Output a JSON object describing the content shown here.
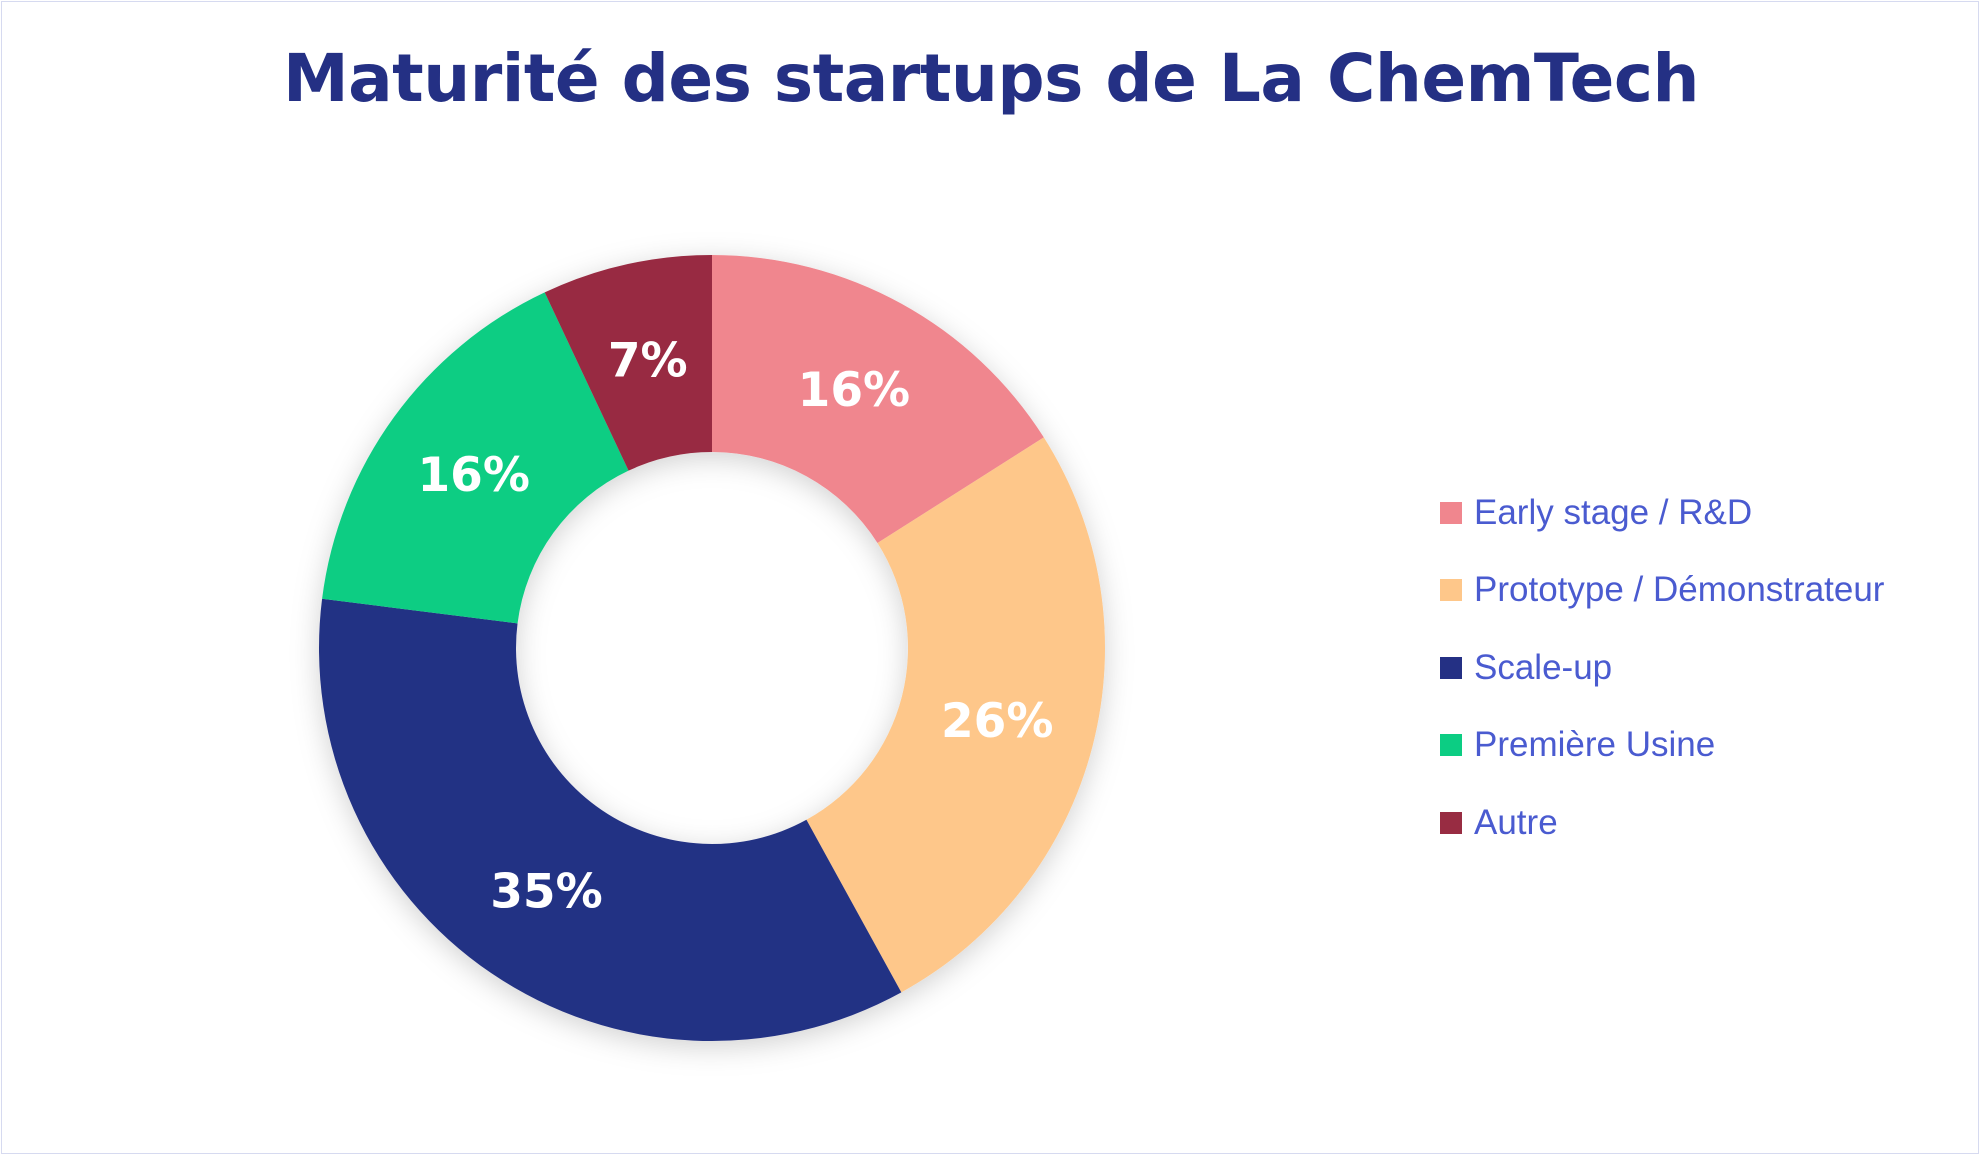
{
  "chart_data": {
    "type": "pie",
    "variant": "donut",
    "title": "Maturité des startups de La ChemTech",
    "categories": [
      "Early stage / R&D",
      "Prototype / Démonstrateur",
      "Scale-up",
      "Première Usine",
      "Autre"
    ],
    "values": [
      16,
      26,
      35,
      16,
      7
    ],
    "data_labels": [
      "16%",
      "26%",
      "35%",
      "16%",
      "7%"
    ],
    "colors": [
      "#f0868e",
      "#fec78a",
      "#243084",
      "#0ccd83",
      "#982c42"
    ],
    "legend_position": "right"
  }
}
